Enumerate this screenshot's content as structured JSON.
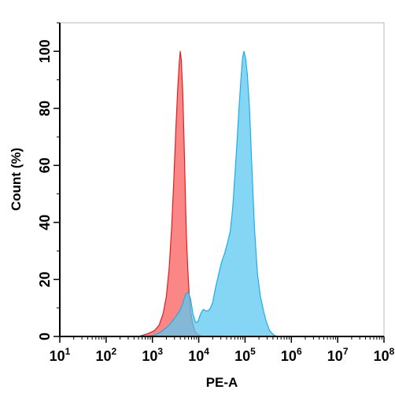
{
  "chart_data": {
    "type": "area",
    "xlabel": "PE-A",
    "ylabel": "Count  (%)",
    "x_scale": "log",
    "xlim": [
      10,
      100000000
    ],
    "ylim": [
      0,
      110
    ],
    "x_ticks": [
      {
        "base": "10",
        "exp": "1",
        "value": 10
      },
      {
        "base": "10",
        "exp": "2",
        "value": 100
      },
      {
        "base": "10",
        "exp": "3",
        "value": 1000
      },
      {
        "base": "10",
        "exp": "4",
        "value": 10000
      },
      {
        "base": "10",
        "exp": "5",
        "value": 100000
      },
      {
        "base": "10",
        "exp": "6",
        "value": 1000000
      },
      {
        "base": "10",
        "exp": "7",
        "value": 10000000
      },
      {
        "base": "10",
        "exp": "8",
        "value": 100000000
      }
    ],
    "y_ticks": [
      "0",
      "20",
      "40",
      "60",
      "80",
      "100"
    ],
    "y_tick_values": [
      0,
      20,
      40,
      60,
      80,
      100
    ],
    "grid": false,
    "series": [
      {
        "fill": "#fa6b6b",
        "stroke": "#e02020",
        "fill_opacity": 0.82,
        "points": [
          [
            500,
            0
          ],
          [
            800,
            1
          ],
          [
            1100,
            2
          ],
          [
            1400,
            4
          ],
          [
            1700,
            8
          ],
          [
            2000,
            14
          ],
          [
            2300,
            24
          ],
          [
            2600,
            38
          ],
          [
            2900,
            55
          ],
          [
            3200,
            72
          ],
          [
            3500,
            86
          ],
          [
            3800,
            96
          ],
          [
            4000,
            100
          ],
          [
            4200,
            97
          ],
          [
            4500,
            86
          ],
          [
            4800,
            70
          ],
          [
            5100,
            52
          ],
          [
            5400,
            36
          ],
          [
            5800,
            24
          ],
          [
            6200,
            15
          ],
          [
            6800,
            8
          ],
          [
            7500,
            4
          ],
          [
            8500,
            1.5
          ],
          [
            10000,
            0.5
          ],
          [
            12000,
            0
          ]
        ]
      },
      {
        "fill": "#5bc8f0",
        "stroke": "#1eaee6",
        "fill_opacity": 0.75,
        "points": [
          [
            800,
            0
          ],
          [
            1100,
            0.5
          ],
          [
            1500,
            1.5
          ],
          [
            2000,
            3
          ],
          [
            2600,
            5
          ],
          [
            3200,
            7
          ],
          [
            3900,
            9
          ],
          [
            4600,
            12
          ],
          [
            5300,
            15
          ],
          [
            6000,
            15.5
          ],
          [
            6700,
            13
          ],
          [
            7500,
            8
          ],
          [
            8500,
            5
          ],
          [
            9500,
            5
          ],
          [
            11000,
            8
          ],
          [
            12500,
            9.5
          ],
          [
            14000,
            9
          ],
          [
            16000,
            9
          ],
          [
            18000,
            10
          ],
          [
            20000,
            12
          ],
          [
            23000,
            17
          ],
          [
            27000,
            22
          ],
          [
            31000,
            26
          ],
          [
            36000,
            29
          ],
          [
            42000,
            33
          ],
          [
            48000,
            37
          ],
          [
            54000,
            45
          ],
          [
            60000,
            56
          ],
          [
            67000,
            68
          ],
          [
            74000,
            80
          ],
          [
            82000,
            91
          ],
          [
            89000,
            98
          ],
          [
            95000,
            100
          ],
          [
            102000,
            98
          ],
          [
            112000,
            92
          ],
          [
            125000,
            80
          ],
          [
            140000,
            60
          ],
          [
            160000,
            38
          ],
          [
            185000,
            22
          ],
          [
            215000,
            14
          ],
          [
            250000,
            9
          ],
          [
            290000,
            5
          ],
          [
            340000,
            2
          ],
          [
            400000,
            0.8
          ],
          [
            480000,
            0
          ]
        ]
      }
    ]
  }
}
